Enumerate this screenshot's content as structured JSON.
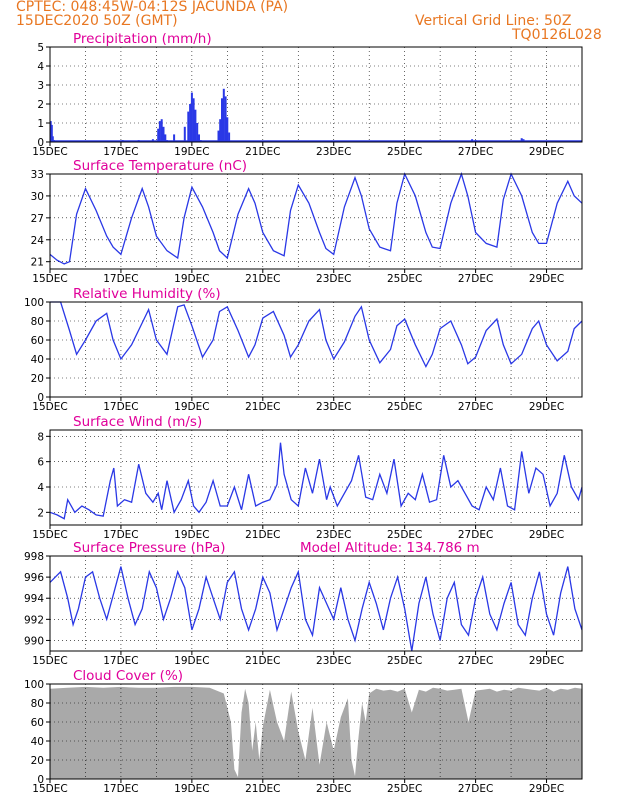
{
  "header": {
    "line1": "CPTEC:   048:45W-04:12S   JACUNDA (PA)",
    "line2": "15DEC2020 50Z (GMT)",
    "grid_note": "Vertical Grid Line: 50Z",
    "code": "TQ0126L028"
  },
  "colors": {
    "header": "#e87722",
    "title": "#e0009a",
    "line": "#2a38e6",
    "cloud": "#a9a9a9"
  },
  "chart_data": [
    {
      "id": "precip",
      "type": "bar",
      "title": "Precipitation (mm/h)",
      "ylim": [
        0,
        5
      ],
      "yticks": [
        "0",
        "1",
        "2",
        "3",
        "4",
        "5"
      ],
      "xticks": [
        "15DEC",
        "17DEC",
        "19DEC",
        "21DEC",
        "23DEC",
        "25DEC",
        "27DEC",
        "29DEC"
      ],
      "xlim_days": [
        15,
        30
      ],
      "grid": true,
      "x": [
        15.02,
        15.05,
        15.08,
        15.11,
        17.0,
        17.05,
        17.1,
        17.15,
        17.5,
        17.9,
        18.05,
        18.1,
        18.15,
        18.2,
        18.25,
        18.3,
        18.5,
        18.8,
        18.9,
        18.95,
        19.0,
        19.05,
        19.1,
        19.15,
        19.2,
        19.25,
        19.5,
        19.6,
        19.75,
        19.8,
        19.85,
        19.9,
        19.95,
        20.0,
        20.05,
        26.9,
        27.0,
        28.3,
        28.35
      ],
      "values": [
        1.1,
        0.9,
        0.3,
        0.1,
        0.05,
        0.1,
        0.08,
        0.06,
        0.1,
        0.15,
        0.7,
        1.1,
        1.2,
        0.8,
        0.4,
        0.1,
        0.4,
        0.8,
        1.6,
        2.0,
        2.6,
        2.3,
        1.7,
        1.0,
        0.4,
        0.1,
        0.08,
        0.05,
        0.6,
        1.2,
        2.3,
        2.8,
        2.4,
        1.3,
        0.5,
        0.15,
        0.1,
        0.2,
        0.15
      ]
    },
    {
      "id": "temp",
      "type": "line",
      "title": "Surface Temperature (nC)",
      "ylim": [
        20,
        33
      ],
      "yticks": [
        "21",
        "24",
        "27",
        "30",
        "33"
      ],
      "ytick_values": [
        21,
        24,
        27,
        30,
        33
      ],
      "xticks": [
        "15DEC",
        "17DEC",
        "19DEC",
        "21DEC",
        "23DEC",
        "25DEC",
        "27DEC",
        "29DEC"
      ],
      "xlim_days": [
        15,
        30
      ],
      "grid": true,
      "x": [
        15.0,
        15.2,
        15.4,
        15.55,
        15.75,
        16.0,
        16.3,
        16.6,
        16.78,
        17.0,
        17.3,
        17.6,
        17.78,
        18.0,
        18.3,
        18.6,
        18.78,
        19.0,
        19.3,
        19.6,
        19.78,
        20.0,
        20.3,
        20.6,
        20.78,
        21.0,
        21.3,
        21.6,
        21.78,
        22.0,
        22.3,
        22.6,
        22.78,
        23.0,
        23.3,
        23.6,
        23.78,
        24.0,
        24.3,
        24.6,
        24.78,
        25.0,
        25.3,
        25.6,
        25.78,
        26.0,
        26.3,
        26.6,
        26.78,
        27.0,
        27.3,
        27.6,
        27.78,
        28.0,
        28.3,
        28.6,
        28.78,
        29.0,
        29.3,
        29.6,
        29.78,
        30.0
      ],
      "values": [
        22.0,
        21.2,
        20.7,
        21.0,
        27.5,
        31.0,
        28.0,
        24.5,
        23.0,
        22.0,
        27.0,
        31.0,
        28.5,
        24.5,
        22.5,
        21.5,
        27.0,
        31.2,
        28.5,
        25.0,
        22.5,
        21.5,
        27.5,
        31.0,
        29.0,
        25.0,
        22.5,
        21.8,
        28.0,
        31.5,
        29.0,
        25.0,
        22.8,
        22.0,
        28.5,
        32.5,
        30.0,
        25.5,
        23.0,
        22.5,
        29.0,
        33.0,
        30.0,
        25.0,
        23.0,
        22.8,
        29.0,
        33.0,
        30.0,
        25.0,
        23.5,
        23.0,
        29.5,
        33.0,
        30.0,
        25.0,
        23.5,
        23.5,
        29.0,
        32.0,
        30.0,
        29.0
      ]
    },
    {
      "id": "rh",
      "type": "line",
      "title": "Relative Humidity (%)",
      "ylim": [
        0,
        100
      ],
      "yticks": [
        "0",
        "20",
        "40",
        "60",
        "80",
        "100"
      ],
      "ytick_values": [
        0,
        20,
        40,
        60,
        80,
        100
      ],
      "xticks": [
        "15DEC",
        "17DEC",
        "19DEC",
        "21DEC",
        "23DEC",
        "25DEC",
        "27DEC",
        "29DEC"
      ],
      "xlim_days": [
        15,
        30
      ],
      "grid": true,
      "x": [
        15.0,
        15.3,
        15.55,
        15.75,
        16.0,
        16.3,
        16.6,
        16.78,
        17.0,
        17.3,
        17.6,
        17.78,
        18.0,
        18.3,
        18.6,
        18.78,
        19.0,
        19.3,
        19.6,
        19.78,
        20.0,
        20.3,
        20.6,
        20.78,
        21.0,
        21.3,
        21.6,
        21.78,
        22.0,
        22.3,
        22.6,
        22.78,
        23.0,
        23.3,
        23.6,
        23.78,
        24.0,
        24.3,
        24.6,
        24.78,
        25.0,
        25.3,
        25.6,
        25.78,
        26.0,
        26.3,
        26.6,
        26.78,
        27.0,
        27.3,
        27.6,
        27.78,
        28.0,
        28.3,
        28.6,
        28.78,
        29.0,
        29.3,
        29.6,
        29.78,
        30.0
      ],
      "values": [
        100,
        100,
        70,
        45,
        60,
        80,
        88,
        60,
        40,
        55,
        78,
        92,
        60,
        45,
        95,
        97,
        75,
        42,
        60,
        90,
        95,
        70,
        42,
        55,
        83,
        90,
        65,
        42,
        55,
        80,
        92,
        60,
        40,
        58,
        85,
        95,
        60,
        36,
        50,
        75,
        82,
        55,
        32,
        45,
        72,
        80,
        55,
        35,
        42,
        70,
        82,
        55,
        35,
        45,
        72,
        80,
        55,
        38,
        48,
        72,
        80
      ]
    },
    {
      "id": "wind",
      "type": "line",
      "title": "Surface Wind (m/s)",
      "ylim": [
        1,
        8.5
      ],
      "yticks": [
        "2",
        "4",
        "6",
        "8"
      ],
      "ytick_values": [
        2,
        4,
        6,
        8
      ],
      "xticks": [
        "15DEC",
        "17DEC",
        "19DEC",
        "21DEC",
        "23DEC",
        "25DEC",
        "27DEC",
        "29DEC"
      ],
      "xlim_days": [
        15,
        30
      ],
      "grid": true,
      "x": [
        15.0,
        15.2,
        15.4,
        15.5,
        15.7,
        15.9,
        16.1,
        16.3,
        16.5,
        16.7,
        16.8,
        16.9,
        17.1,
        17.3,
        17.5,
        17.7,
        17.9,
        18.05,
        18.15,
        18.3,
        18.5,
        18.7,
        18.9,
        19.05,
        19.2,
        19.4,
        19.6,
        19.8,
        20.0,
        20.2,
        20.4,
        20.6,
        20.8,
        21.0,
        21.2,
        21.4,
        21.5,
        21.6,
        21.8,
        22.0,
        22.2,
        22.4,
        22.6,
        22.8,
        22.9,
        23.1,
        23.3,
        23.5,
        23.7,
        23.9,
        24.1,
        24.3,
        24.5,
        24.7,
        24.9,
        25.1,
        25.3,
        25.5,
        25.7,
        25.9,
        26.1,
        26.3,
        26.5,
        26.7,
        26.9,
        27.1,
        27.3,
        27.5,
        27.7,
        27.9,
        28.1,
        28.3,
        28.5,
        28.7,
        28.9,
        29.1,
        29.3,
        29.5,
        29.7,
        29.9,
        30.0
      ],
      "values": [
        2.0,
        1.8,
        1.5,
        3.0,
        2.0,
        2.5,
        2.2,
        1.8,
        1.7,
        4.5,
        5.5,
        2.5,
        3.0,
        2.8,
        5.8,
        3.5,
        2.8,
        3.5,
        2.2,
        4.5,
        2.0,
        3.0,
        4.5,
        2.5,
        2.0,
        2.8,
        4.5,
        2.5,
        2.5,
        4.0,
        2.2,
        5.0,
        2.5,
        2.8,
        3.0,
        4.2,
        7.5,
        5.0,
        3.0,
        2.5,
        5.5,
        3.5,
        6.2,
        3.0,
        4.0,
        2.5,
        3.5,
        4.5,
        6.5,
        3.2,
        3.0,
        5.0,
        3.5,
        6.2,
        2.5,
        3.5,
        3.0,
        5.0,
        2.8,
        3.0,
        6.5,
        4.0,
        4.5,
        3.5,
        2.5,
        2.2,
        4.0,
        3.0,
        5.5,
        2.5,
        2.2,
        6.8,
        3.5,
        5.5,
        5.0,
        2.5,
        3.5,
        6.5,
        4.0,
        3.0,
        4.0
      ]
    },
    {
      "id": "pressure",
      "type": "line",
      "title": "Surface Pressure (hPa)",
      "annotation": "Model Altitude: 134.786  m",
      "ylim": [
        989,
        998
      ],
      "yticks": [
        "990",
        "992",
        "994",
        "996",
        "998"
      ],
      "ytick_values": [
        990,
        992,
        994,
        996,
        998
      ],
      "xticks": [
        "15DEC",
        "17DEC",
        "19DEC",
        "21DEC",
        "23DEC",
        "25DEC",
        "27DEC",
        "29DEC"
      ],
      "xlim_days": [
        15,
        30
      ],
      "grid": true,
      "x": [
        15.0,
        15.15,
        15.3,
        15.5,
        15.65,
        15.8,
        16.0,
        16.2,
        16.4,
        16.6,
        16.8,
        17.0,
        17.2,
        17.4,
        17.6,
        17.8,
        18.0,
        18.2,
        18.4,
        18.6,
        18.8,
        19.0,
        19.2,
        19.4,
        19.6,
        19.8,
        20.0,
        20.2,
        20.4,
        20.6,
        20.8,
        21.0,
        21.2,
        21.4,
        21.6,
        21.8,
        22.0,
        22.2,
        22.4,
        22.6,
        22.8,
        23.0,
        23.2,
        23.4,
        23.6,
        23.8,
        24.0,
        24.2,
        24.4,
        24.6,
        24.8,
        25.0,
        25.2,
        25.4,
        25.6,
        25.8,
        26.0,
        26.2,
        26.4,
        26.6,
        26.8,
        27.0,
        27.2,
        27.4,
        27.6,
        27.8,
        28.0,
        28.2,
        28.4,
        28.6,
        28.8,
        29.0,
        29.2,
        29.4,
        29.6,
        29.8,
        30.0
      ],
      "values": [
        995.5,
        996.0,
        996.5,
        994.0,
        991.5,
        993.0,
        996.0,
        996.5,
        994.0,
        992.0,
        994.5,
        997.0,
        994.0,
        991.5,
        993.0,
        996.5,
        995.0,
        992.0,
        994.0,
        996.5,
        995.0,
        991.0,
        993.0,
        996.0,
        994.0,
        992.0,
        995.5,
        996.5,
        993.0,
        991.0,
        993.0,
        996.0,
        994.5,
        991.0,
        993.0,
        995.0,
        996.5,
        992.0,
        990.5,
        995.0,
        993.5,
        992.0,
        995.0,
        992.0,
        990.0,
        993.0,
        995.5,
        993.5,
        991.0,
        994.0,
        996.0,
        993.0,
        989.0,
        993.5,
        996.0,
        992.5,
        990.0,
        994.0,
        995.5,
        991.5,
        990.5,
        994.0,
        996.0,
        992.5,
        991.0,
        993.5,
        995.5,
        991.5,
        990.5,
        994.0,
        996.5,
        992.5,
        990.5,
        994.5,
        997.0,
        993.0,
        991.0
      ]
    },
    {
      "id": "cloud",
      "type": "area",
      "title": "Cloud Cover (%)",
      "ylim": [
        0,
        100
      ],
      "yticks": [
        "0",
        "20",
        "40",
        "60",
        "80",
        "100"
      ],
      "ytick_values": [
        0,
        20,
        40,
        60,
        80,
        100
      ],
      "xticks": [
        "15DEC",
        "17DEC",
        "19DEC",
        "21DEC",
        "23DEC",
        "25DEC",
        "27DEC",
        "29DEC"
      ],
      "xlim_days": [
        15,
        30
      ],
      "grid": true,
      "x": [
        15.0,
        15.5,
        16.0,
        16.5,
        17.0,
        17.5,
        18.0,
        18.5,
        19.0,
        19.5,
        19.9,
        20.1,
        20.2,
        20.3,
        20.4,
        20.5,
        20.6,
        20.7,
        20.8,
        20.9,
        21.0,
        21.2,
        21.4,
        21.6,
        21.8,
        22.0,
        22.2,
        22.4,
        22.6,
        22.8,
        23.0,
        23.2,
        23.4,
        23.5,
        23.6,
        23.7,
        23.8,
        23.9,
        24.0,
        24.2,
        24.4,
        24.6,
        24.8,
        25.0,
        25.2,
        25.4,
        25.6,
        25.8,
        26.0,
        26.2,
        26.4,
        26.6,
        26.8,
        27.0,
        27.2,
        27.4,
        27.6,
        27.8,
        28.0,
        28.2,
        28.4,
        28.6,
        28.8,
        29.0,
        29.2,
        29.4,
        29.6,
        29.8,
        30.0
      ],
      "values": [
        95,
        96,
        97,
        96,
        97,
        96,
        96,
        97,
        97,
        96,
        90,
        60,
        10,
        2,
        70,
        95,
        80,
        30,
        60,
        20,
        55,
        94,
        60,
        40,
        92,
        50,
        20,
        75,
        15,
        60,
        30,
        65,
        85,
        20,
        3,
        45,
        80,
        60,
        90,
        95,
        93,
        94,
        92,
        95,
        70,
        94,
        92,
        96,
        95,
        93,
        94,
        95,
        60,
        93,
        94,
        95,
        92,
        94,
        93,
        96,
        95,
        94,
        93,
        96,
        92,
        95,
        94,
        96,
        95
      ]
    }
  ]
}
